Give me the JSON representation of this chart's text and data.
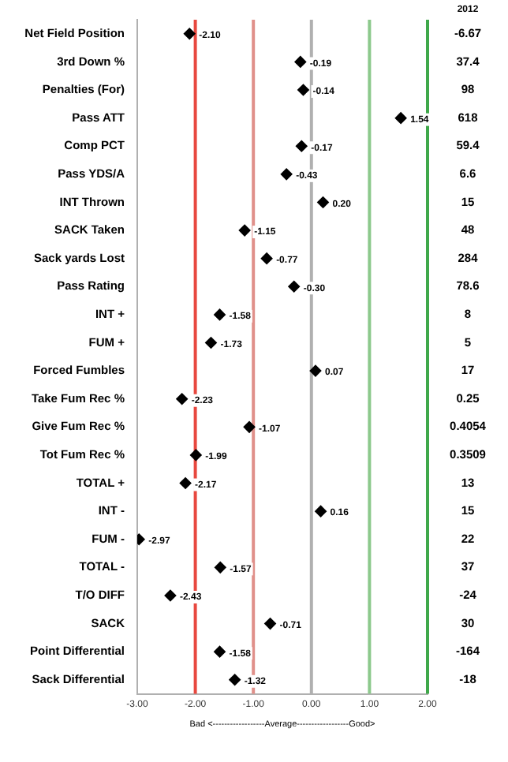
{
  "chart_data": {
    "type": "scatter",
    "orientation": "horizontal",
    "xlabel": "Bad <------------------Average------------------Good>",
    "categories": [
      "Net Field Position",
      "3rd Down %",
      "Penalties (For)",
      "Pass ATT",
      "Comp PCT",
      "Pass YDS/A",
      "INT Thrown",
      "SACK Taken",
      "Sack yards Lost",
      "Pass Rating",
      "INT +",
      "FUM +",
      "Forced Fumbles",
      "Take Fum Rec %",
      "Give Fum Rec %",
      "Tot Fum Rec %",
      "TOTAL +",
      "INT -",
      "FUM -",
      "TOTAL -",
      "T/O DIFF",
      "SACK",
      "Point Differential",
      "Sack Differential"
    ],
    "values": [
      -2.1,
      -0.19,
      -0.14,
      1.54,
      -0.17,
      -0.43,
      0.2,
      -1.15,
      -0.77,
      -0.3,
      -1.58,
      -1.73,
      0.07,
      -2.23,
      -1.07,
      -1.99,
      -2.17,
      0.16,
      -2.97,
      -1.57,
      -2.43,
      -0.71,
      -1.58,
      -1.32
    ],
    "value_labels": [
      "-2.10",
      "-0.19",
      "-0.14",
      "1.54",
      "-0.17",
      "-0.43",
      "0.20",
      "-1.15",
      "-0.77",
      "-0.30",
      "-1.58",
      "-1.73",
      "0.07",
      "-2.23",
      "-1.07",
      "-1.99",
      "-2.17",
      "0.16",
      "-2.97",
      "-1.57",
      "-2.43",
      "-0.71",
      "-1.58",
      "-1.32"
    ],
    "color": "#000000",
    "marker": "diamond",
    "xlim": [
      -3,
      2
    ],
    "xticks": [
      {
        "value": -3,
        "label": "-3.00"
      },
      {
        "value": -2,
        "label": "-2.00"
      },
      {
        "value": -1,
        "label": "-1.00"
      },
      {
        "value": 0,
        "label": "0.00"
      },
      {
        "value": 1,
        "label": "1.00"
      },
      {
        "value": 2,
        "label": "2.00"
      }
    ],
    "legend": false,
    "ref_lines": [
      {
        "axis": "x",
        "value": -2,
        "color": "#e8483f"
      },
      {
        "axis": "x",
        "value": -1,
        "color": "#e0908a"
      },
      {
        "axis": "x",
        "value": 0,
        "color": "#b0b0b0"
      },
      {
        "axis": "x",
        "value": 1,
        "color": "#8cc98c"
      },
      {
        "axis": "x",
        "value": 2,
        "color": "#3fa84a"
      }
    ],
    "annotations": [
      "2012",
      "-6.67",
      "37.4",
      "98",
      "618",
      "59.4",
      "6.6",
      "15",
      "48",
      "284",
      "78.6",
      "8",
      "5",
      "17",
      "0.25",
      "0.4054",
      "0.3509",
      "13",
      "15",
      "22",
      "37",
      "-24",
      "30",
      "-164",
      "-18"
    ]
  }
}
